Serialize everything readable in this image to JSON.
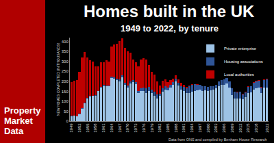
{
  "chart_data": {
    "type": "bar",
    "title": "Homes built in the UK",
    "subtitle": "1949 to 2022, by tenure",
    "y_label": "NEW HOMES COMPLETED (IN THOUSANDS)",
    "source": "Data from ONS and compiled by Benham House Research",
    "brand": "Property Market Data",
    "stacked": true,
    "grid": false,
    "legend": "top-right",
    "ylim": [
      0,
      420
    ],
    "yticks": [
      0,
      50,
      100,
      150,
      200,
      250,
      300,
      350,
      400
    ],
    "categories": [
      "1949",
      null,
      null,
      "1952",
      null,
      null,
      "1955",
      null,
      null,
      "1958",
      null,
      null,
      "1961",
      null,
      null,
      "1964",
      null,
      null,
      "1967",
      null,
      null,
      "1970",
      null,
      null,
      "1973",
      null,
      null,
      "1976",
      null,
      null,
      "1979",
      null,
      null,
      "1982",
      null,
      null,
      "1985",
      null,
      null,
      "1988",
      null,
      null,
      "1991",
      null,
      null,
      "1994",
      null,
      null,
      "1997",
      null,
      null,
      "2000",
      null,
      null,
      "2003",
      null,
      null,
      "2006",
      null,
      null,
      "2009",
      null,
      null,
      "2012",
      null,
      null,
      "2015",
      null,
      null,
      "2018",
      null,
      null,
      null,
      "2022"
    ],
    "series": [
      {
        "name": "Private enterprise",
        "color": "#9dc3e6",
        "values": [
          25,
          27,
          23,
          35,
          62,
          90,
          113,
          124,
          126,
          128,
          150,
          168,
          177,
          174,
          175,
          218,
          214,
          205,
          200,
          222,
          182,
          170,
          191,
          196,
          186,
          140,
          151,
          152,
          140,
          150,
          140,
          128,
          115,
          126,
          148,
          159,
          156,
          170,
          183,
          200,
          180,
          160,
          153,
          140,
          141,
          147,
          152,
          154,
          157,
          152,
          154,
          151,
          155,
          159,
          165,
          177,
          183,
          184,
          189,
          168,
          132,
          113,
          115,
          115,
          109,
          119,
          140,
          143,
          158,
          165,
          170,
          140,
          170,
          170
        ]
      },
      {
        "name": "Housing associations",
        "color": "#2f5597",
        "values": [
          2,
          2,
          2,
          2,
          3,
          3,
          3,
          3,
          3,
          3,
          3,
          3,
          4,
          4,
          5,
          6,
          8,
          9,
          9,
          9,
          10,
          10,
          9,
          9,
          9,
          10,
          15,
          15,
          25,
          22,
          18,
          21,
          19,
          13,
          16,
          17,
          13,
          12,
          12,
          12,
          13,
          17,
          19,
          26,
          34,
          37,
          33,
          30,
          26,
          24,
          22,
          20,
          19,
          17,
          18,
          21,
          23,
          27,
          28,
          31,
          34,
          35,
          30,
          32,
          27,
          26,
          32,
          31,
          34,
          35,
          33,
          30,
          35,
          40
        ]
      },
      {
        "name": "Local authorities",
        "color": "#c00000",
        "values": [
          170,
          175,
          180,
          210,
          255,
          255,
          205,
          180,
          170,
          145,
          122,
          125,
          115,
          130,
          120,
          150,
          165,
          175,
          195,
          185,
          175,
          170,
          145,
          105,
          100,
          125,
          145,
          150,
          145,
          110,
          90,
          85,
          65,
          40,
          38,
          34,
          27,
          23,
          20,
          19,
          17,
          16,
          10,
          5,
          3,
          2,
          1,
          1,
          1,
          1,
          0.5,
          0.4,
          0.3,
          0.3,
          0.3,
          0.3,
          0.3,
          0.3,
          0.3,
          0.5,
          0.7,
          1,
          2,
          2,
          2,
          2,
          2.5,
          2.5,
          3,
          3,
          3,
          3,
          4,
          5
        ]
      }
    ]
  }
}
